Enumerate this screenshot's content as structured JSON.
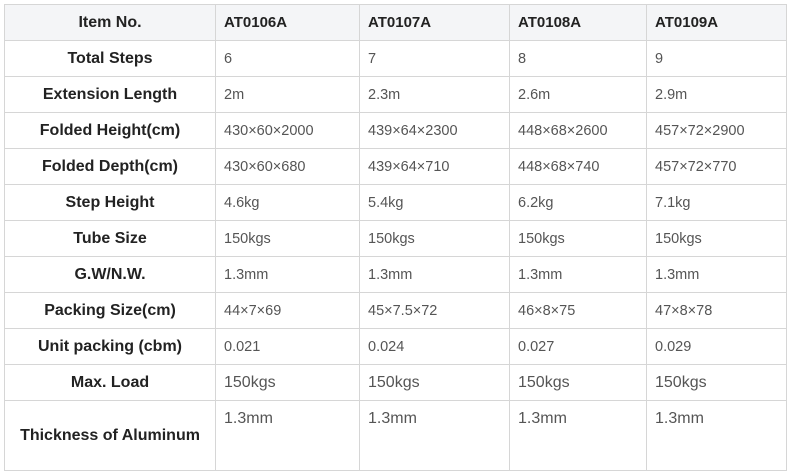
{
  "table": {
    "header": {
      "label": "Item No.",
      "values": [
        "AT0106A",
        "AT0107A",
        "AT0108A",
        "AT0109A"
      ]
    },
    "rows": [
      {
        "label": "Total Steps",
        "values": [
          "6",
          "7",
          "8",
          "9"
        ]
      },
      {
        "label": "Extension Length",
        "values": [
          "2m",
          "2.3m",
          "2.6m",
          "2.9m"
        ]
      },
      {
        "label": "Folded Height(cm)",
        "values": [
          "430×60×2000",
          "439×64×2300",
          "448×68×2600",
          "457×72×2900"
        ]
      },
      {
        "label": "Folded Depth(cm)",
        "values": [
          "430×60×680",
          "439×64×710",
          "448×68×740",
          "457×72×770"
        ]
      },
      {
        "label": "Step Height",
        "values": [
          "4.6kg",
          "5.4kg",
          "6.2kg",
          "7.1kg"
        ]
      },
      {
        "label": "Tube Size",
        "values": [
          "150kgs",
          "150kgs",
          "150kgs",
          "150kgs"
        ]
      },
      {
        "label": "G.W/N.W.",
        "values": [
          "1.3mm",
          "1.3mm",
          "1.3mm",
          "1.3mm"
        ]
      },
      {
        "label": "Packing Size(cm)",
        "values": [
          "44×7×69",
          "45×7.5×72",
          "46×8×75",
          "47×8×78"
        ]
      },
      {
        "label": "Unit packing (cbm)",
        "values": [
          "0.021",
          "0.024",
          "0.027",
          "0.029"
        ]
      },
      {
        "label": "Max. Load",
        "values": [
          "150kgs",
          "150kgs",
          "150kgs",
          "150kgs"
        ]
      },
      {
        "label": "Thickness of Aluminum",
        "values": [
          "1.3mm",
          "1.3mm",
          "1.3mm",
          "1.3mm"
        ]
      }
    ]
  }
}
